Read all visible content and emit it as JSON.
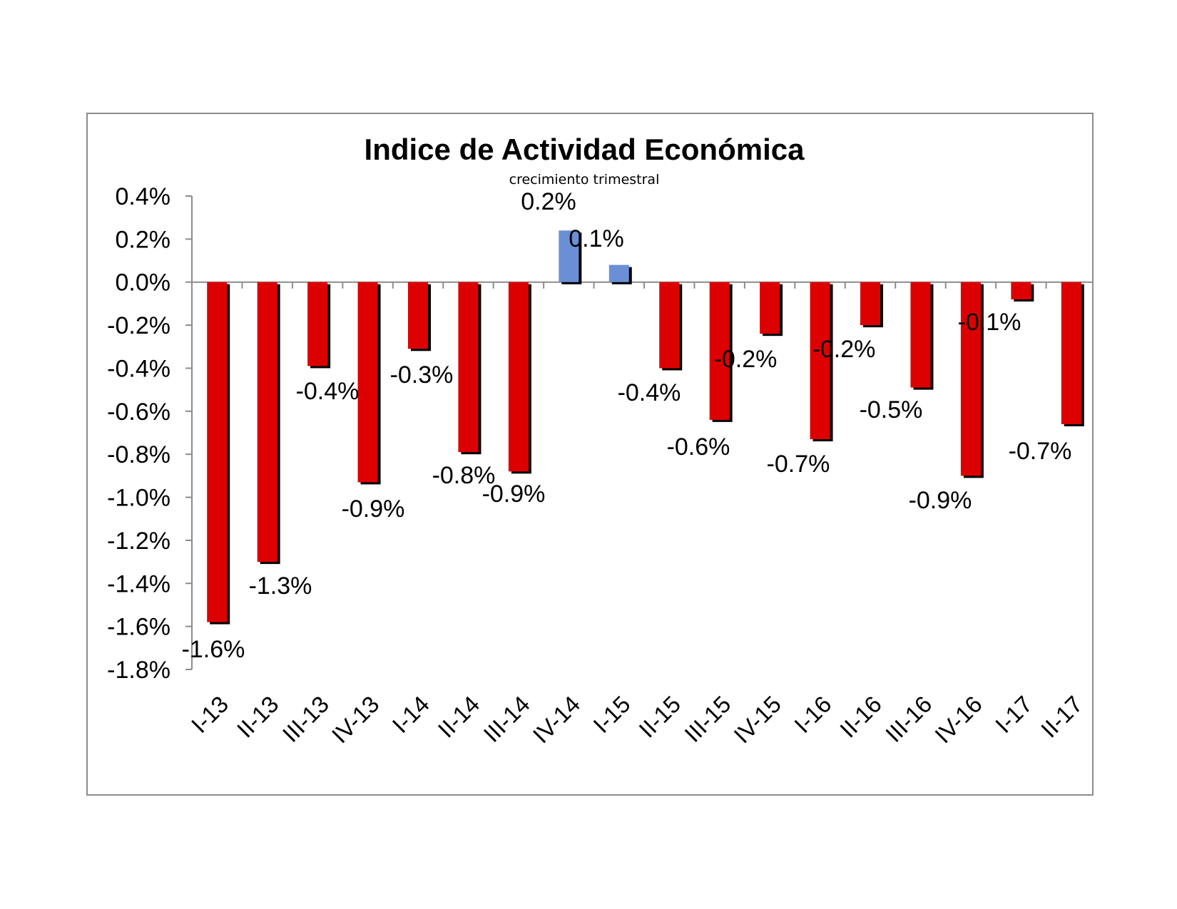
{
  "chart_data": {
    "type": "bar",
    "title": "Indice de Actividad Económica",
    "subtitle": "crecimiento trimestral",
    "xlabel": "",
    "ylabel": "",
    "ylim": [
      -1.8,
      0.4
    ],
    "y_ticks": [
      0.4,
      0.2,
      0.0,
      -0.2,
      -0.4,
      -0.6,
      -0.8,
      -1.0,
      -1.2,
      -1.4,
      -1.6,
      -1.8
    ],
    "y_tick_labels": [
      "0.4%",
      "0.2%",
      "0.0%",
      "-0.2%",
      "-0.4%",
      "-0.6%",
      "-0.8%",
      "-1.0%",
      "-1.2%",
      "-1.4%",
      "-1.6%",
      "-1.8%"
    ],
    "grid": false,
    "legend": "none",
    "categories": [
      "I-13",
      "II-13",
      "III-13",
      "IV-13",
      "I-14",
      "II-14",
      "III-14",
      "IV-14",
      "I-15",
      "II-15",
      "III-15",
      "IV-15",
      "I-16",
      "II-16",
      "III-16",
      "IV-16",
      "I-17",
      "II-17"
    ],
    "values": [
      -1.58,
      -1.3,
      -0.39,
      -0.93,
      -0.31,
      -0.79,
      -0.88,
      0.24,
      0.08,
      -0.4,
      -0.64,
      -0.24,
      -0.73,
      -0.2,
      -0.49,
      -0.9,
      -0.08,
      -0.66
    ],
    "data_labels": [
      "-1.6%",
      "-1.3%",
      "-0.4%",
      "-0.9%",
      "-0.3%",
      "-0.8%",
      "-0.9%",
      "0.2%",
      "0.1%",
      "-0.4%",
      "-0.6%",
      "-0.2%",
      "-0.7%",
      "-0.2%",
      "-0.5%",
      "-0.9%",
      "-0.1%",
      "-0.7%"
    ],
    "colors": {
      "negative": "#dd0000",
      "positive": "#6a8fd6",
      "shadow": "#000000",
      "axis": "#8c8c8c"
    }
  }
}
